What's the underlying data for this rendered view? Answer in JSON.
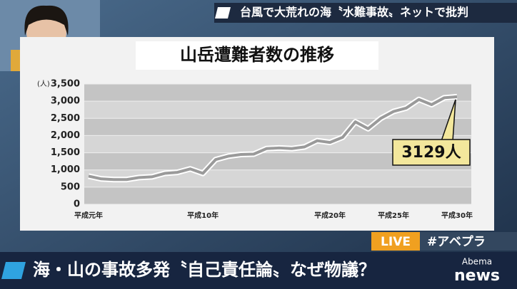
{
  "screen": {
    "headline": "台風で大荒れの海〝水難事故〟ネットで批判",
    "caption": "海・山の事故多発〝自己責任論〟なぜ物議？",
    "live": "LIVE",
    "hashtag": "#アベプラ",
    "logo_top": "Abema",
    "logo_bottom": "news"
  },
  "chart_data": {
    "type": "line",
    "title": "山岳遭難者数の推移",
    "y_unit": "(人)",
    "categories": [
      "平成元年",
      null,
      null,
      null,
      null,
      null,
      null,
      null,
      null,
      "平成10年",
      null,
      null,
      null,
      null,
      null,
      null,
      null,
      null,
      null,
      "平成20年",
      null,
      null,
      null,
      null,
      "平成25年",
      null,
      null,
      null,
      null,
      "平成30年"
    ],
    "values": [
      820,
      740,
      720,
      720,
      780,
      800,
      900,
      930,
      1030,
      900,
      1300,
      1400,
      1450,
      1460,
      1620,
      1640,
      1620,
      1670,
      1850,
      1800,
      1950,
      2400,
      2200,
      2500,
      2700,
      2800,
      3050,
      2900,
      3100,
      3129
    ],
    "value_labels": [
      null,
      null,
      null,
      null,
      null,
      null,
      null,
      null,
      null,
      null,
      null,
      null,
      null,
      null,
      null,
      null,
      null,
      null,
      null,
      null,
      null,
      null,
      null,
      null,
      null,
      null,
      null,
      null,
      null,
      "3129人"
    ],
    "color": "#9a9a9a",
    "ylim": [
      0,
      3500
    ],
    "yticks": [
      0,
      500,
      {
        "value": 1000,
        "label": "1,000"
      },
      {
        "value": 1500,
        "label": "1,500"
      },
      {
        "value": 2000,
        "label": "2,000"
      },
      {
        "value": 2500,
        "label": "2,500"
      },
      {
        "value": 3000,
        "label": "3,000"
      },
      {
        "value": 3500,
        "label": "3,500"
      }
    ],
    "grid": true
  }
}
